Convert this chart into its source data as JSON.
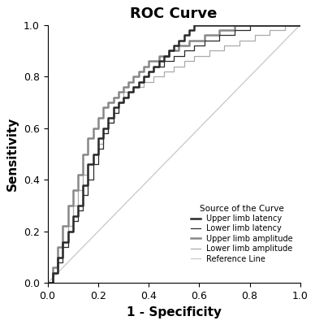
{
  "title": "ROC Curve",
  "xlabel": "1 - Specificity",
  "ylabel": "Sensitivity",
  "xlim": [
    0.0,
    1.0
  ],
  "ylim": [
    0.0,
    1.0
  ],
  "title_fontsize": 13,
  "axis_label_fontsize": 11,
  "tick_fontsize": 9,
  "background_color": "#ffffff",
  "legend_title": "Source of the Curve",
  "legend_labels": [
    "Upper limb latency",
    "Lower limb latency",
    "Upper limb amplitude",
    "Lower limb amplitude",
    "Reference Line"
  ],
  "upper_limb_latency_color": "#2a2a2a",
  "upper_limb_latency_lw": 1.8,
  "lower_limb_latency_color": "#2a2a2a",
  "lower_limb_latency_lw": 0.9,
  "upper_limb_amplitude_color": "#888888",
  "upper_limb_amplitude_lw": 1.8,
  "lower_limb_amplitude_color": "#aaaaaa",
  "lower_limb_amplitude_lw": 0.9,
  "reference_color": "#cccccc",
  "reference_lw": 1.0,
  "upper_limb_latency_x": [
    0.0,
    0.02,
    0.02,
    0.04,
    0.04,
    0.06,
    0.06,
    0.08,
    0.08,
    0.1,
    0.1,
    0.12,
    0.12,
    0.14,
    0.14,
    0.16,
    0.16,
    0.18,
    0.18,
    0.2,
    0.2,
    0.22,
    0.22,
    0.24,
    0.24,
    0.26,
    0.26,
    0.28,
    0.28,
    0.3,
    0.3,
    0.32,
    0.32,
    0.34,
    0.34,
    0.36,
    0.36,
    0.38,
    0.38,
    0.4,
    0.4,
    0.42,
    0.42,
    0.44,
    0.44,
    0.46,
    0.46,
    0.48,
    0.48,
    0.5,
    0.5,
    0.52,
    0.52,
    0.54,
    0.54,
    0.56,
    0.56,
    0.58,
    0.58,
    0.6,
    0.6,
    0.64,
    0.64,
    0.7,
    0.7,
    0.76,
    0.76,
    0.84,
    0.84,
    0.9,
    0.9,
    0.94,
    0.94,
    1.0
  ],
  "upper_limb_latency_y": [
    0.0,
    0.0,
    0.04,
    0.04,
    0.1,
    0.1,
    0.16,
    0.16,
    0.2,
    0.2,
    0.26,
    0.26,
    0.3,
    0.3,
    0.38,
    0.38,
    0.46,
    0.46,
    0.5,
    0.5,
    0.56,
    0.56,
    0.6,
    0.6,
    0.64,
    0.64,
    0.68,
    0.68,
    0.7,
    0.7,
    0.72,
    0.72,
    0.74,
    0.74,
    0.76,
    0.76,
    0.78,
    0.78,
    0.8,
    0.8,
    0.82,
    0.82,
    0.84,
    0.84,
    0.86,
    0.86,
    0.88,
    0.88,
    0.9,
    0.9,
    0.92,
    0.92,
    0.94,
    0.94,
    0.96,
    0.96,
    0.98,
    0.98,
    1.0,
    1.0,
    1.0,
    1.0,
    1.0,
    1.0,
    1.0,
    1.0,
    1.0,
    1.0,
    1.0,
    1.0,
    1.0,
    1.0,
    1.0,
    1.0
  ],
  "lower_limb_latency_x": [
    0.0,
    0.02,
    0.02,
    0.04,
    0.04,
    0.06,
    0.06,
    0.08,
    0.08,
    0.1,
    0.1,
    0.12,
    0.12,
    0.14,
    0.14,
    0.16,
    0.16,
    0.18,
    0.18,
    0.2,
    0.2,
    0.22,
    0.22,
    0.24,
    0.24,
    0.26,
    0.26,
    0.28,
    0.28,
    0.3,
    0.3,
    0.32,
    0.32,
    0.34,
    0.34,
    0.36,
    0.36,
    0.38,
    0.38,
    0.4,
    0.4,
    0.42,
    0.42,
    0.46,
    0.46,
    0.5,
    0.5,
    0.54,
    0.54,
    0.58,
    0.58,
    0.62,
    0.62,
    0.68,
    0.68,
    0.74,
    0.74,
    0.8,
    0.8,
    0.86,
    0.86,
    0.92,
    0.92,
    1.0
  ],
  "lower_limb_latency_y": [
    0.0,
    0.0,
    0.04,
    0.04,
    0.08,
    0.08,
    0.14,
    0.14,
    0.2,
    0.2,
    0.24,
    0.24,
    0.28,
    0.28,
    0.34,
    0.34,
    0.4,
    0.4,
    0.46,
    0.46,
    0.52,
    0.52,
    0.58,
    0.58,
    0.62,
    0.62,
    0.66,
    0.66,
    0.7,
    0.7,
    0.72,
    0.72,
    0.74,
    0.74,
    0.76,
    0.76,
    0.78,
    0.78,
    0.8,
    0.8,
    0.82,
    0.82,
    0.84,
    0.84,
    0.86,
    0.86,
    0.88,
    0.88,
    0.9,
    0.9,
    0.92,
    0.92,
    0.94,
    0.94,
    0.96,
    0.96,
    0.98,
    0.98,
    1.0,
    1.0,
    1.0,
    1.0,
    1.0,
    1.0
  ],
  "upper_limb_amplitude_x": [
    0.0,
    0.02,
    0.02,
    0.04,
    0.04,
    0.06,
    0.06,
    0.08,
    0.08,
    0.1,
    0.1,
    0.12,
    0.12,
    0.14,
    0.14,
    0.16,
    0.16,
    0.18,
    0.18,
    0.2,
    0.2,
    0.22,
    0.22,
    0.24,
    0.24,
    0.26,
    0.26,
    0.28,
    0.28,
    0.3,
    0.3,
    0.32,
    0.32,
    0.34,
    0.34,
    0.36,
    0.36,
    0.38,
    0.38,
    0.4,
    0.4,
    0.44,
    0.44,
    0.48,
    0.48,
    0.52,
    0.52,
    0.56,
    0.56,
    0.62,
    0.62,
    0.68,
    0.68,
    0.74,
    0.74,
    0.8,
    0.8,
    0.86,
    0.86,
    0.92,
    0.92,
    1.0
  ],
  "upper_limb_amplitude_y": [
    0.0,
    0.0,
    0.06,
    0.06,
    0.14,
    0.14,
    0.22,
    0.22,
    0.3,
    0.3,
    0.36,
    0.36,
    0.42,
    0.42,
    0.5,
    0.5,
    0.56,
    0.56,
    0.6,
    0.6,
    0.64,
    0.64,
    0.68,
    0.68,
    0.7,
    0.7,
    0.72,
    0.72,
    0.74,
    0.74,
    0.76,
    0.76,
    0.78,
    0.78,
    0.8,
    0.8,
    0.82,
    0.82,
    0.84,
    0.84,
    0.86,
    0.86,
    0.88,
    0.88,
    0.9,
    0.9,
    0.92,
    0.92,
    0.94,
    0.94,
    0.96,
    0.96,
    0.98,
    0.98,
    1.0,
    1.0,
    1.0,
    1.0,
    1.0,
    1.0,
    1.0,
    1.0
  ],
  "lower_limb_amplitude_x": [
    0.0,
    0.02,
    0.02,
    0.04,
    0.04,
    0.06,
    0.06,
    0.08,
    0.08,
    0.1,
    0.1,
    0.12,
    0.12,
    0.14,
    0.14,
    0.16,
    0.16,
    0.18,
    0.18,
    0.2,
    0.2,
    0.22,
    0.22,
    0.24,
    0.24,
    0.26,
    0.26,
    0.28,
    0.28,
    0.3,
    0.3,
    0.34,
    0.34,
    0.38,
    0.38,
    0.42,
    0.42,
    0.46,
    0.46,
    0.5,
    0.5,
    0.54,
    0.54,
    0.58,
    0.58,
    0.64,
    0.64,
    0.7,
    0.7,
    0.76,
    0.76,
    0.82,
    0.82,
    0.88,
    0.88,
    0.94,
    0.94,
    1.0
  ],
  "lower_limb_amplitude_y": [
    0.0,
    0.0,
    0.04,
    0.04,
    0.1,
    0.1,
    0.16,
    0.16,
    0.22,
    0.22,
    0.3,
    0.3,
    0.36,
    0.36,
    0.42,
    0.42,
    0.46,
    0.46,
    0.5,
    0.5,
    0.54,
    0.54,
    0.58,
    0.58,
    0.62,
    0.62,
    0.66,
    0.66,
    0.7,
    0.7,
    0.74,
    0.74,
    0.76,
    0.76,
    0.78,
    0.78,
    0.8,
    0.8,
    0.82,
    0.82,
    0.84,
    0.84,
    0.86,
    0.86,
    0.88,
    0.88,
    0.9,
    0.9,
    0.92,
    0.92,
    0.94,
    0.94,
    0.96,
    0.96,
    0.98,
    0.98,
    1.0,
    1.0
  ]
}
